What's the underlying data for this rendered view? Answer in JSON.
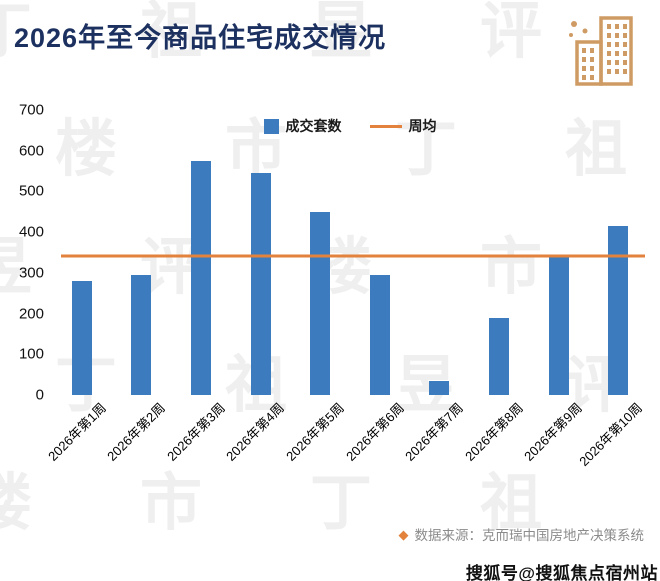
{
  "header": {
    "title": "2026年至今商品住宅成交情况"
  },
  "colors": {
    "title": "#1c3160",
    "bar": "#3c7cbe",
    "line": "#e2823c",
    "icon": "#cf9b64",
    "source_text": "#8b8b8b"
  },
  "chart_data": {
    "type": "bar",
    "title": "2026年至今商品住宅成交情况",
    "categories": [
      "2026年第1周",
      "2026年第2周",
      "2026年第3周",
      "2026年第4周",
      "2026年第5周",
      "2026年第6周",
      "2026年第7周",
      "2026年第8周",
      "2026年第9周",
      "2026年第10周"
    ],
    "series": [
      {
        "name": "成交套数",
        "type": "bar",
        "values": [
          280,
          295,
          575,
          545,
          450,
          295,
          35,
          190,
          340,
          415
        ]
      },
      {
        "name": "周均",
        "type": "line",
        "value": 342
      }
    ],
    "ylim": [
      0,
      700
    ],
    "yticks": [
      0,
      100,
      200,
      300,
      400,
      500,
      600,
      700
    ],
    "grid": false,
    "legend_position": "top-center"
  },
  "footer": {
    "source": "数据来源：克而瑞中国房地产决策系统",
    "logo_glyph": "◆"
  },
  "watermark": {
    "pattern": "丁祖昱评楼市",
    "bottom_right": "搜狐号@搜狐焦点宿州站"
  }
}
